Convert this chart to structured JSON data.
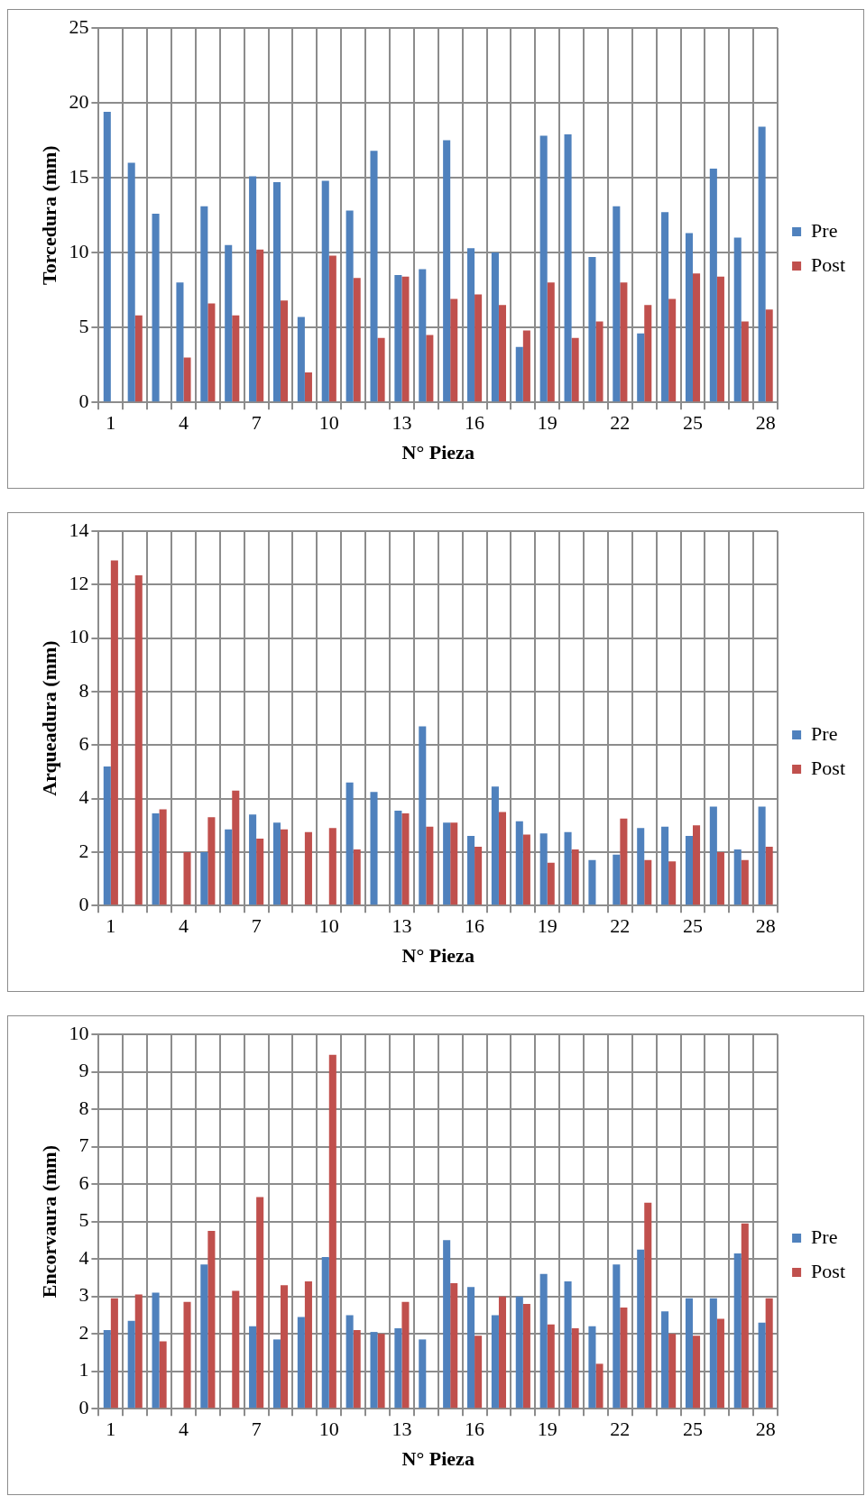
{
  "chart_data": [
    {
      "type": "bar",
      "xlabel": "N° Pieza",
      "ylabel": "Torcedura (mm)",
      "categories": [
        "1",
        null,
        null,
        "4",
        null,
        null,
        "7",
        null,
        null,
        "10",
        null,
        null,
        "13",
        null,
        null,
        "16",
        null,
        null,
        "19",
        null,
        null,
        "22",
        null,
        null,
        "25",
        null,
        null,
        "28"
      ],
      "series": [
        {
          "name": "Pre",
          "color": "#4f81bd",
          "values": [
            19.4,
            16,
            12.6,
            8,
            13.1,
            10.5,
            15.1,
            14.7,
            5.7,
            14.8,
            12.8,
            16.8,
            8.5,
            8.9,
            17.5,
            10.3,
            10,
            3.7,
            17.8,
            17.9,
            9.7,
            13.1,
            4.6,
            12.7,
            11.3,
            15.6,
            11,
            18.4
          ]
        },
        {
          "name": "Post",
          "color": "#c0504d",
          "values": [
            null,
            5.8,
            null,
            3.0,
            6.6,
            5.8,
            10.2,
            6.8,
            2.0,
            9.8,
            8.3,
            4.3,
            8.4,
            4.5,
            6.9,
            7.2,
            6.5,
            4.8,
            8.0,
            4.3,
            5.4,
            8.0,
            6.5,
            6.9,
            8.6,
            8.4,
            5.4,
            6.2
          ]
        }
      ],
      "ylim": [
        0,
        25
      ],
      "yticks": [
        0,
        5,
        10,
        15,
        20,
        25
      ],
      "grid": true,
      "legend": "right"
    },
    {
      "type": "bar",
      "xlabel": "N° Pieza",
      "ylabel": "Arqueadura (mm)",
      "categories": [
        "1",
        null,
        null,
        "4",
        null,
        null,
        "7",
        null,
        null,
        "10",
        null,
        null,
        "13",
        null,
        null,
        "16",
        null,
        null,
        "19",
        null,
        null,
        "22",
        null,
        null,
        "25",
        null,
        null,
        "28"
      ],
      "series": [
        {
          "name": "Pre",
          "color": "#4f81bd",
          "values": [
            5.2,
            null,
            3.45,
            null,
            2.0,
            2.85,
            3.4,
            3.1,
            null,
            null,
            4.6,
            4.25,
            3.55,
            6.7,
            3.1,
            2.6,
            4.45,
            3.15,
            2.7,
            2.75,
            1.7,
            1.9,
            2.9,
            2.95,
            2.6,
            3.7,
            2.1,
            3.7
          ]
        },
        {
          "name": "Post",
          "color": "#c0504d",
          "values": [
            12.9,
            12.35,
            3.6,
            2.0,
            3.3,
            4.3,
            2.5,
            2.85,
            2.75,
            2.9,
            2.1,
            null,
            3.45,
            2.95,
            3.1,
            2.2,
            3.5,
            2.65,
            1.6,
            2.1,
            null,
            3.25,
            1.7,
            1.65,
            3.0,
            2.0,
            1.7,
            2.2
          ]
        }
      ],
      "ylim": [
        0,
        14
      ],
      "yticks": [
        0,
        2,
        4,
        6,
        8,
        10,
        12,
        14
      ],
      "grid": true,
      "legend": "right"
    },
    {
      "type": "bar",
      "xlabel": "N° Pieza",
      "ylabel": "Encorvaura (mm)",
      "categories": [
        "1",
        null,
        null,
        "4",
        null,
        null,
        "7",
        null,
        null,
        "10",
        null,
        null,
        "13",
        null,
        null,
        "16",
        null,
        null,
        "19",
        null,
        null,
        "22",
        null,
        null,
        "25",
        null,
        null,
        "28"
      ],
      "series": [
        {
          "name": "Pre",
          "color": "#4f81bd",
          "values": [
            2.1,
            2.35,
            3.1,
            null,
            3.85,
            null,
            2.2,
            1.85,
            2.45,
            4.05,
            2.5,
            2.05,
            2.15,
            1.85,
            4.5,
            3.25,
            2.5,
            3.0,
            3.6,
            3.4,
            2.2,
            3.85,
            4.25,
            2.6,
            2.95,
            2.95,
            4.15,
            2.3
          ]
        },
        {
          "name": "Post",
          "color": "#c0504d",
          "values": [
            2.95,
            3.05,
            1.8,
            2.85,
            4.75,
            3.15,
            5.65,
            3.3,
            3.4,
            9.45,
            2.1,
            2.0,
            2.85,
            null,
            3.35,
            1.95,
            3.0,
            2.8,
            2.25,
            2.15,
            1.2,
            2.7,
            5.5,
            2.0,
            1.95,
            2.4,
            4.95,
            2.95
          ]
        }
      ],
      "ylim": [
        0,
        10
      ],
      "yticks": [
        0,
        1,
        2,
        3,
        4,
        5,
        6,
        7,
        8,
        9,
        10
      ],
      "grid": true,
      "legend": "right"
    }
  ]
}
